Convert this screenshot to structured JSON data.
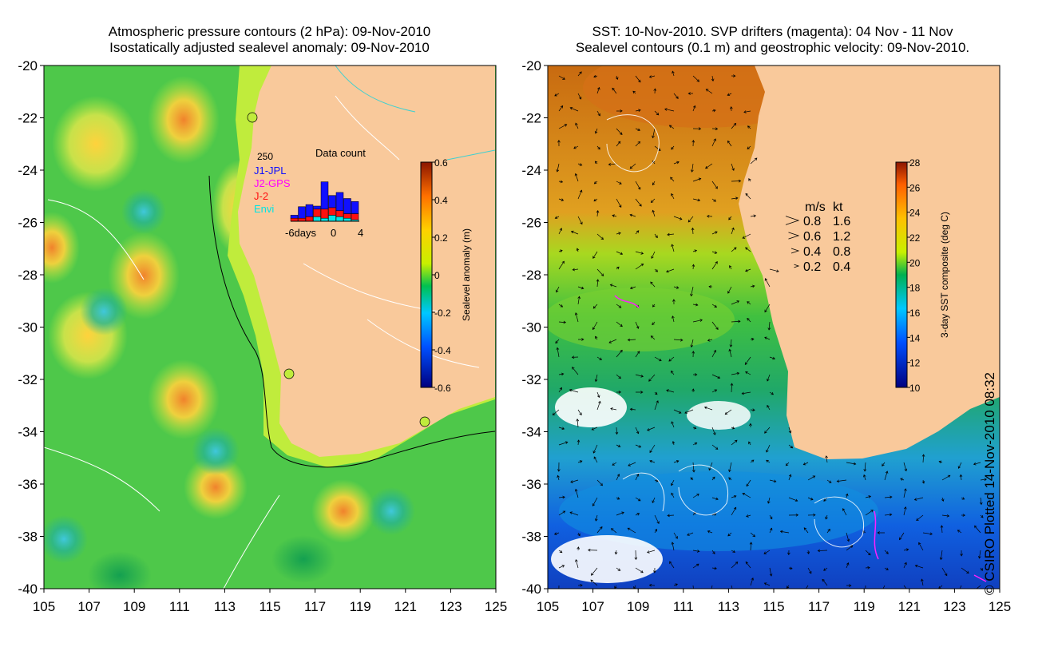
{
  "left_panel": {
    "title_line1": "Atmospheric pressure contours (2 hPa): 09-Nov-2010",
    "title_line2": "Isostatically adjusted sealevel anomaly: 09-Nov-2010",
    "colorbar_label": "Sealevel anomaly (m)",
    "colorbar_ticks": [
      "0.6",
      "0.4",
      "0.2",
      "0",
      "-0.2",
      "-0.4",
      "-0.6"
    ],
    "inset": {
      "title": "Data count",
      "ymax_label": "250",
      "legend": [
        {
          "label": "J1-JPL",
          "color": "#1010ff"
        },
        {
          "label": "J2-GPS",
          "color": "#ff00ff"
        },
        {
          "label": "J-2",
          "color": "#ff1010"
        },
        {
          "label": "Envi",
          "color": "#00e5e5"
        }
      ],
      "x_ticks": [
        "-6days",
        "0",
        "4"
      ]
    }
  },
  "right_panel": {
    "title_line1": "SST: 10-Nov-2010. SVP drifters (magenta): 04 Nov - 11 Nov",
    "title_line2": "Sealevel contours (0.1 m) and geostrophic velocity: 09-Nov-2010.",
    "colorbar_label": "3-day SST composite (deg C)",
    "colorbar_ticks": [
      "28",
      "26",
      "24",
      "22",
      "20",
      "18",
      "16",
      "14",
      "12",
      "10"
    ],
    "velocity_legend": {
      "header_ms": "m/s",
      "header_kt": "kt",
      "rows": [
        {
          "ms": "0.8",
          "kt": "1.6"
        },
        {
          "ms": "0.6",
          "kt": "1.2"
        },
        {
          "ms": "0.4",
          "kt": "0.8"
        },
        {
          "ms": "0.2",
          "kt": "0.4"
        }
      ]
    }
  },
  "axes": {
    "y_ticks": [
      "-20",
      "-22",
      "-24",
      "-26",
      "-28",
      "-30",
      "-32",
      "-34",
      "-36",
      "-38",
      "-40"
    ],
    "x_ticks": [
      "105",
      "107",
      "109",
      "111",
      "113",
      "115",
      "117",
      "119",
      "121",
      "123",
      "125"
    ]
  },
  "copyright": "© CSIRO Plotted 14-Nov-2010 08:32",
  "colors": {
    "land": "#f9c99b",
    "ocean_green": "#3cc83c",
    "warm_sst": "#d9791a"
  }
}
